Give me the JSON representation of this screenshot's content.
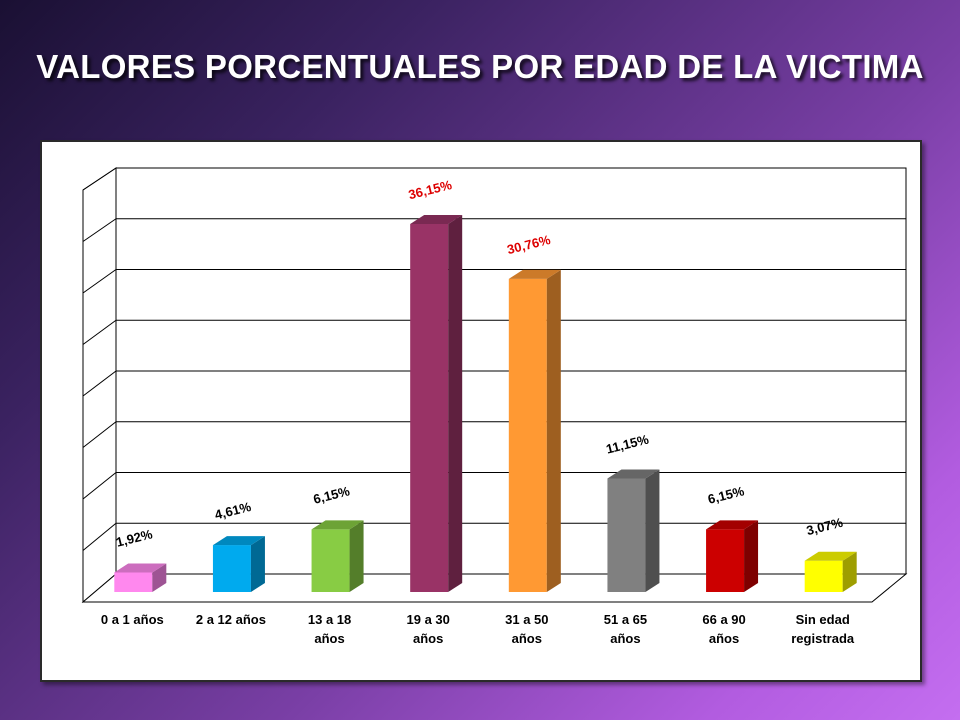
{
  "slide": {
    "title": "VALORES PORCENTUALES POR EDAD DE LA VICTIMA"
  },
  "chart_data": {
    "type": "bar",
    "title": "",
    "xlabel": "",
    "ylabel": "",
    "ylim": [
      0,
      40
    ],
    "grid": true,
    "legend": "none",
    "categories": [
      [
        "0 a 1 años"
      ],
      [
        "2 a 12 años"
      ],
      [
        "13 a 18",
        "años"
      ],
      [
        "19 a 30",
        "años"
      ],
      [
        "31 a 50",
        "años"
      ],
      [
        "51 a 65",
        "años"
      ],
      [
        "66 a 90",
        "años"
      ],
      [
        "Sin edad",
        "registrada"
      ]
    ],
    "values": [
      1.92,
      4.61,
      6.15,
      36.15,
      30.76,
      11.15,
      6.15,
      3.07
    ],
    "data_labels": [
      "1,92%",
      "4,61%",
      "6,15%",
      "36,15%",
      "30,76%",
      "11,15%",
      "6,15%",
      "3,07%"
    ],
    "colors": [
      "#ff88ee",
      "#00aaee",
      "#88cc44",
      "#993366",
      "#ff9933",
      "#808080",
      "#cc0000",
      "#ffff00"
    ],
    "label_colors": [
      "#000000",
      "#000000",
      "#000000",
      "#dd0000",
      "#dd0000",
      "#000000",
      "#000000",
      "#000000"
    ]
  }
}
